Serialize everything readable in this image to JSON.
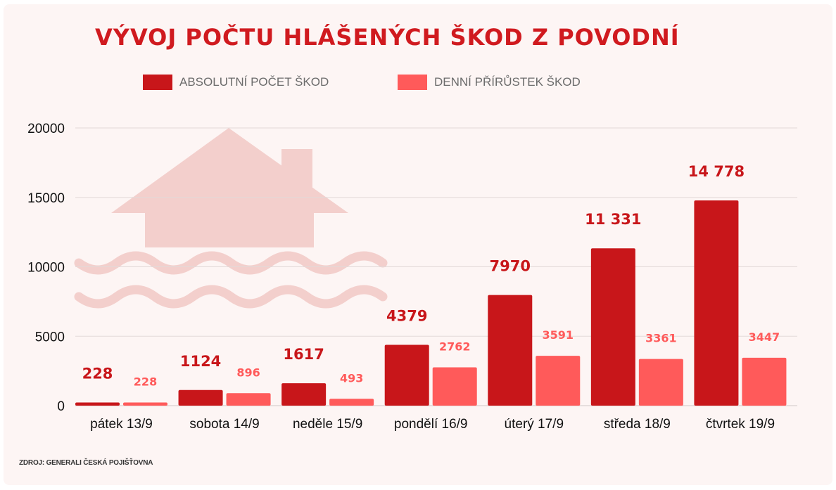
{
  "title": "VÝVOJ POČTU HLÁŠENÝCH ŠKOD Z POVODNÍ",
  "source": "ZDROJ: GENERALI ČESKÁ POJIŠŤOVNA",
  "colors": {
    "absolute": "#c8161a",
    "daily": "#ff5a5a",
    "icon": "#f3cfcc",
    "grid": "#e3d9d8",
    "title": "#d01a1f"
  },
  "icon": "flooded-house-icon",
  "chart_data": {
    "type": "bar",
    "categories": [
      "pátek 13/9",
      "sobota 14/9",
      "neděle 15/9",
      "pondělí 16/9",
      "úterý 17/9",
      "středa 18/9",
      "čtvrtek 19/9"
    ],
    "series": [
      {
        "name": "ABSOLUTNÍ POČET ŠKOD",
        "values": [
          228,
          1124,
          1617,
          4379,
          7970,
          11331,
          14778
        ],
        "labels": [
          "228",
          "1124",
          "1617",
          "4379",
          "7970",
          "11 331",
          "14 778"
        ]
      },
      {
        "name": "DENNÍ PŘÍRŮSTEK ŠKOD",
        "values": [
          228,
          896,
          493,
          2762,
          3591,
          3361,
          3447
        ],
        "labels": [
          "228",
          "896",
          "493",
          "2762",
          "3591",
          "3361",
          "3447"
        ]
      }
    ],
    "yticks": [
      0,
      5000,
      10000,
      15000,
      20000
    ],
    "ylim": [
      0,
      20000
    ],
    "grid": true,
    "legend": "top"
  }
}
